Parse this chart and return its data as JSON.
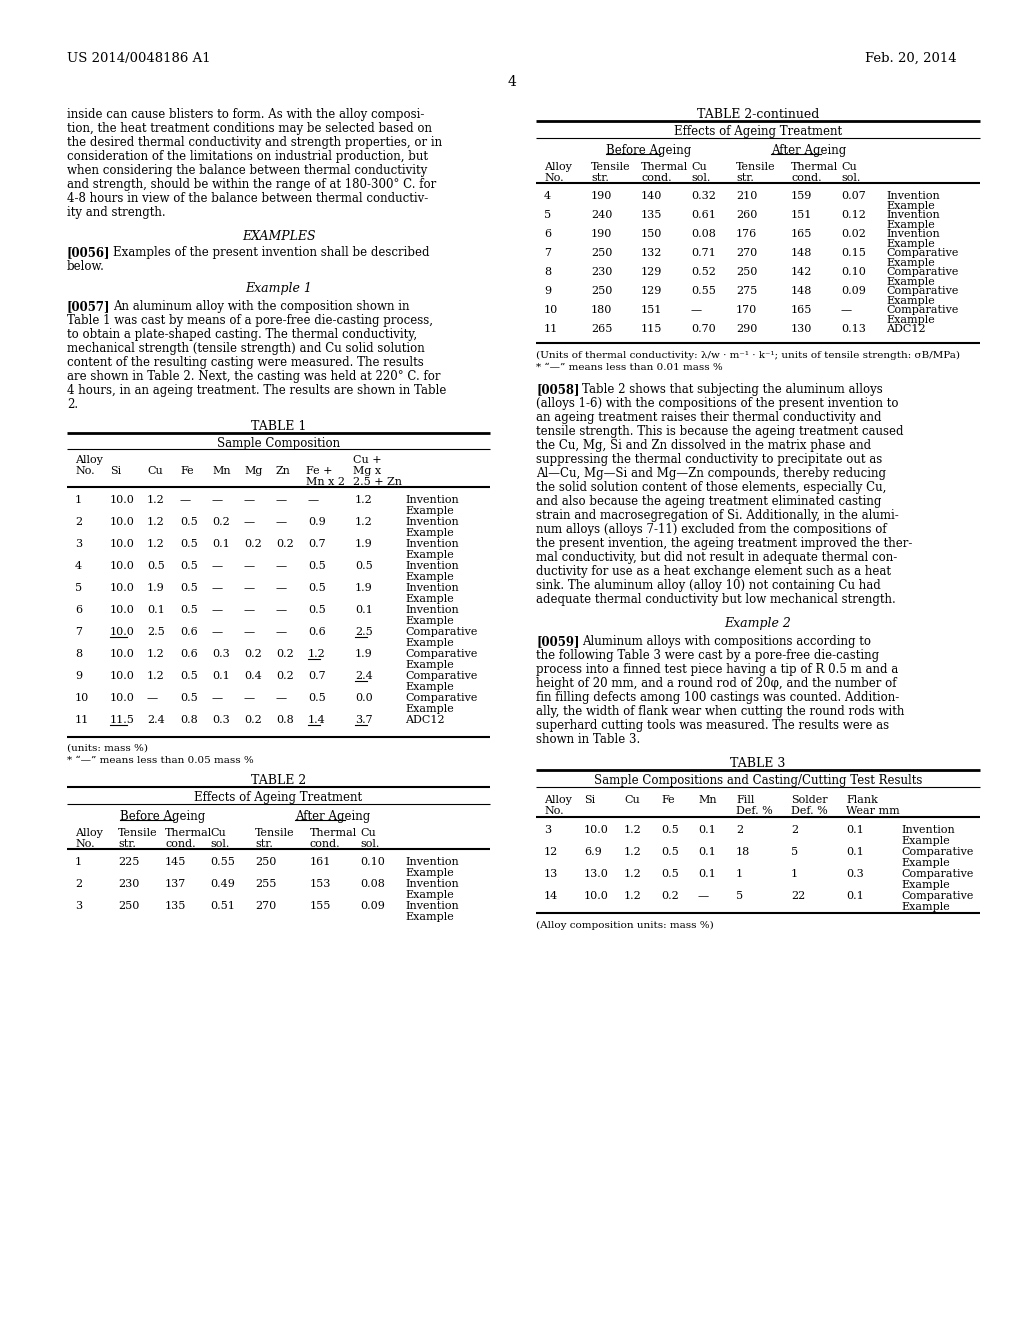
{
  "header_left": "US 2014/0048186 A1",
  "header_right": "Feb. 20, 2014",
  "page_number": "4",
  "bg_color": "#ffffff",
  "text_color": "#000000",
  "left_col_text": [
    "inside can cause blisters to form. As with the alloy composi-",
    "tion, the heat treatment conditions may be selected based on",
    "the desired thermal conductivity and strength properties, or in",
    "consideration of the limitations on industrial production, but",
    "when considering the balance between thermal conductivity",
    "and strength, should be within the range of at 180-300° C. for",
    "4-8 hours in view of the balance between thermal conductiv-",
    "ity and strength."
  ],
  "para57_lines": [
    "An aluminum alloy with the composition shown in",
    "Table 1 was cast by means of a pore-free die-casting process,",
    "to obtain a plate-shaped casting. The thermal conductivity,",
    "mechanical strength (tensile strength) and Cu solid solution",
    "content of the resulting casting were measured. The results",
    "are shown in Table 2. Next, the casting was held at 220° C. for",
    "4 hours, in an ageing treatment. The results are shown in Table",
    "2."
  ],
  "table1_data": [
    [
      "1",
      "10.0",
      "1.2",
      "—",
      "—",
      "—",
      "—",
      "—",
      "1.2",
      "Invention",
      "Example"
    ],
    [
      "2",
      "10.0",
      "1.2",
      "0.5",
      "0.2",
      "—",
      "—",
      "0.9",
      "1.2",
      "Invention",
      "Example"
    ],
    [
      "3",
      "10.0",
      "1.2",
      "0.5",
      "0.1",
      "0.2",
      "0.2",
      "0.7",
      "1.9",
      "Invention",
      "Example"
    ],
    [
      "4",
      "10.0",
      "0.5",
      "0.5",
      "—",
      "—",
      "—",
      "0.5",
      "0.5",
      "Invention",
      "Example"
    ],
    [
      "5",
      "10.0",
      "1.9",
      "0.5",
      "—",
      "—",
      "—",
      "0.5",
      "1.9",
      "Invention",
      "Example"
    ],
    [
      "6",
      "10.0",
      "0.1",
      "0.5",
      "—",
      "—",
      "—",
      "0.5",
      "0.1",
      "Invention",
      "Example"
    ],
    [
      "7",
      "10.0",
      "2.5",
      "0.6",
      "—",
      "—",
      "—",
      "0.6",
      "2.5",
      "Comparative",
      "Example"
    ],
    [
      "8",
      "10.0",
      "1.2",
      "0.6",
      "0.3",
      "0.2",
      "0.2",
      "1.2",
      "1.9",
      "Comparative",
      "Example"
    ],
    [
      "9",
      "10.0",
      "1.2",
      "0.5",
      "0.1",
      "0.4",
      "0.2",
      "0.7",
      "2.4",
      "Comparative",
      "Example"
    ],
    [
      "10",
      "10.0",
      "—",
      "0.5",
      "—",
      "—",
      "—",
      "0.5",
      "0.0",
      "Comparative",
      "Example"
    ],
    [
      "11",
      "11.5",
      "2.4",
      "0.8",
      "0.3",
      "0.2",
      "0.8",
      "1.4",
      "3.7",
      "ADC12",
      ""
    ]
  ],
  "table1_underline": {
    "7": [
      1,
      8
    ],
    "8": [
      7
    ],
    "9": [
      8
    ],
    "11": [
      1,
      7,
      8
    ]
  },
  "table2_data": [
    [
      "1",
      "225",
      "145",
      "0.55",
      "250",
      "161",
      "0.10",
      "Invention",
      "Example"
    ],
    [
      "2",
      "230",
      "137",
      "0.49",
      "255",
      "153",
      "0.08",
      "Invention",
      "Example"
    ],
    [
      "3",
      "250",
      "135",
      "0.51",
      "270",
      "155",
      "0.09",
      "Invention",
      "Example"
    ]
  ],
  "table2cont_data": [
    [
      "4",
      "190",
      "140",
      "0.32",
      "210",
      "159",
      "0.07",
      "Invention",
      "Example"
    ],
    [
      "5",
      "240",
      "135",
      "0.61",
      "260",
      "151",
      "0.12",
      "Invention",
      "Example"
    ],
    [
      "6",
      "190",
      "150",
      "0.08",
      "176",
      "165",
      "0.02",
      "Invention",
      "Example"
    ],
    [
      "7",
      "250",
      "132",
      "0.71",
      "270",
      "148",
      "0.15",
      "Comparative",
      "Example"
    ],
    [
      "8",
      "230",
      "129",
      "0.52",
      "250",
      "142",
      "0.10",
      "Comparative",
      "Example"
    ],
    [
      "9",
      "250",
      "129",
      "0.55",
      "275",
      "148",
      "0.09",
      "Comparative",
      "Example"
    ],
    [
      "10",
      "180",
      "151",
      "—",
      "170",
      "165",
      "—",
      "Comparative",
      "Example"
    ],
    [
      "11",
      "265",
      "115",
      "0.70",
      "290",
      "130",
      "0.13",
      "ADC12",
      ""
    ]
  ],
  "table2cont_footnotes": [
    "(Units of thermal conductivity: λ/w · m⁻¹ · k⁻¹; units of tensile strength: σB/MPa)",
    "* “—” means less than 0.01 mass %"
  ],
  "para58_lines": [
    "Table 2 shows that subjecting the aluminum alloys",
    "(alloys 1-6) with the compositions of the present invention to",
    "an ageing treatment raises their thermal conductivity and",
    "tensile strength. This is because the ageing treatment caused",
    "the Cu, Mg, Si and Zn dissolved in the matrix phase and",
    "suppressing the thermal conductivity to precipitate out as",
    "Al—Cu, Mg—Si and Mg—Zn compounds, thereby reducing",
    "the solid solution content of those elements, especially Cu,",
    "and also because the ageing treatment eliminated casting",
    "strain and macrosegregation of Si. Additionally, in the alumi-",
    "num alloys (alloys 7-11) excluded from the compositions of",
    "the present invention, the ageing treatment improved the ther-",
    "mal conductivity, but did not result in adequate thermal con-",
    "ductivity for use as a heat exchange element such as a heat",
    "sink. The aluminum alloy (alloy 10) not containing Cu had",
    "adequate thermal conductivity but low mechanical strength."
  ],
  "para59_lines": [
    "Aluminum alloys with compositions according to",
    "the following Table 3 were cast by a pore-free die-casting",
    "process into a finned test piece having a tip of R 0.5 m and a",
    "height of 20 mm, and a round rod of 20φ, and the number of",
    "fin filling defects among 100 castings was counted. Addition-",
    "ally, the width of flank wear when cutting the round rods with",
    "superhard cutting tools was measured. The results were as",
    "shown in Table 3."
  ],
  "table3_data": [
    [
      "3",
      "10.0",
      "1.2",
      "0.5",
      "0.1",
      "2",
      "2",
      "0.1",
      "Invention",
      "Example"
    ],
    [
      "12",
      "6.9",
      "1.2",
      "0.5",
      "0.1",
      "18",
      "5",
      "0.1",
      "Comparative",
      "Example"
    ],
    [
      "13",
      "13.0",
      "1.2",
      "0.5",
      "0.1",
      "1",
      "1",
      "0.3",
      "Comparative",
      "Example"
    ],
    [
      "14",
      "10.0",
      "1.2",
      "0.2",
      "—",
      "5",
      "22",
      "0.1",
      "Comparative",
      "Example"
    ]
  ]
}
